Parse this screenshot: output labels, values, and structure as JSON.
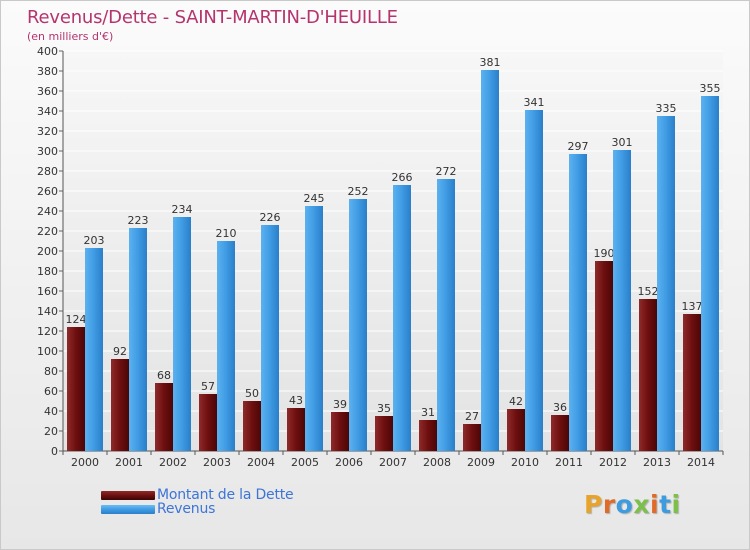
{
  "title": "Revenus/Dette - SAINT-MARTIN-D'HEUILLE",
  "subtitle": "(en milliers d'€)",
  "logo": "Proxiti",
  "colors": {
    "dette": "#6e0f0f",
    "revenus": "#3f9be3",
    "title": "#b5346e",
    "legend_text": "#3d74d8"
  },
  "chart_data": {
    "type": "bar",
    "categories": [
      "2000",
      "2001",
      "2002",
      "2003",
      "2004",
      "2005",
      "2006",
      "2007",
      "2008",
      "2009",
      "2010",
      "2011",
      "2012",
      "2013",
      "2014"
    ],
    "series": [
      {
        "name": "Montant de la Dette",
        "values": [
          124,
          92,
          68,
          57,
          50,
          43,
          39,
          35,
          31,
          27,
          42,
          36,
          190,
          152,
          137
        ]
      },
      {
        "name": "Revenus",
        "values": [
          203,
          223,
          234,
          210,
          226,
          245,
          252,
          266,
          272,
          381,
          341,
          297,
          301,
          335,
          355
        ]
      }
    ],
    "ylim": [
      0,
      400
    ],
    "yticks": [
      0,
      20,
      40,
      60,
      80,
      100,
      120,
      140,
      160,
      180,
      200,
      220,
      240,
      260,
      280,
      300,
      320,
      340,
      360,
      380,
      400
    ],
    "grid": true,
    "legend": "bottom-left"
  }
}
